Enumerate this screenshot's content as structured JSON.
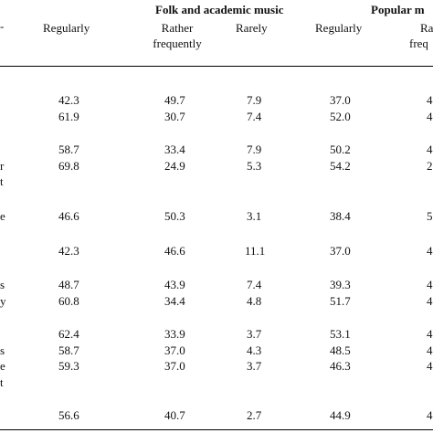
{
  "groups": {
    "folk_academic": "Folk and academic music",
    "popular": "Popular m"
  },
  "header_stub": "-",
  "columns": {
    "regularly_1": "Regularly",
    "rather_frequently_1": [
      "Rather",
      "frequently"
    ],
    "rarely": "Rarely",
    "regularly_2": "Regularly",
    "rather_frequently_2": [
      "Ra",
      "freq"
    ]
  },
  "rows": [
    {
      "label": "",
      "values": [
        "42.3",
        "49.7",
        "7.9",
        "37.0",
        "4"
      ]
    },
    {
      "label": "",
      "values": [
        "61.9",
        "30.7",
        "7.4",
        "52.0",
        "4"
      ]
    },
    {
      "label": "",
      "values": [
        "58.7",
        "33.4",
        "7.9",
        "50.2",
        "4"
      ]
    },
    {
      "label": "r",
      "values": [
        "69.8",
        "24.9",
        "5.3",
        "54.2",
        "2"
      ]
    },
    {
      "label": "t",
      "values": null
    },
    {
      "label": "e",
      "values": [
        "46.6",
        "50.3",
        "3.1",
        "38.4",
        "5"
      ]
    },
    {
      "label": "",
      "values": [
        "42.3",
        "46.6",
        "11.1",
        "37.0",
        "4"
      ]
    },
    {
      "label": "s",
      "values": [
        "48.7",
        "43.9",
        "7.4",
        "39.3",
        "4"
      ]
    },
    {
      "label": "y",
      "values": [
        "60.8",
        "34.4",
        "4.8",
        "51.7",
        "4"
      ]
    },
    {
      "label": "",
      "values": [
        "62.4",
        "33.9",
        "3.7",
        "53.1",
        "4"
      ]
    },
    {
      "label": "s",
      "values": [
        "58.7",
        "37.0",
        "4.3",
        "48.5",
        "4"
      ]
    },
    {
      "label": "e",
      "values": [
        "59.3",
        "37.0",
        "3.7",
        "46.3",
        "4"
      ]
    },
    {
      "label": "t",
      "values": null
    },
    {
      "label": "",
      "values": [
        "56.6",
        "40.7",
        "2.7",
        "44.9",
        "4"
      ]
    }
  ]
}
